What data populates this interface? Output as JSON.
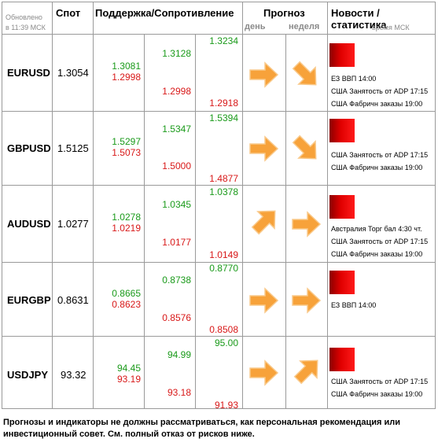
{
  "header": {
    "updated_label": "Обновлено",
    "updated_time": "в 11:39 МСК",
    "spot": "Спот",
    "support_resistance": "Поддержка/Сопротивление",
    "forecast": "Прогноз",
    "day": "день",
    "week": "неделя",
    "news": "Новости / статистика",
    "news_time": "время МСК"
  },
  "rows": [
    {
      "pair": "EURUSD",
      "spot": "1.3054",
      "levels": {
        "s1_res": "1.3081",
        "s1_sup": "1.2998",
        "s2_res": "1.3128",
        "s2_sup": "1.2998",
        "s3_res": "1.3234",
        "s3_sup": "1.2918"
      },
      "forecast_day": "arrow-right-icon",
      "forecast_week": "arrow-down-right-icon",
      "news": [
        "ЕЗ ВВП 14:00",
        "США Занятость от ADP 17:15",
        "США Фабричн заказы 19:00"
      ]
    },
    {
      "pair": "GBPUSD",
      "spot": "1.5125",
      "levels": {
        "s1_res": "1.5297",
        "s1_sup": "1.5073",
        "s2_res": "1.5347",
        "s2_sup": "1.5000",
        "s3_res": "1.5394",
        "s3_sup": "1.4877"
      },
      "forecast_day": "arrow-right-icon",
      "forecast_week": "arrow-down-right-icon",
      "news": [
        "США Занятость от ADP 17:15",
        "США Фабричн заказы 19:00"
      ]
    },
    {
      "pair": "AUDUSD",
      "spot": "1.0277",
      "levels": {
        "s1_res": "1.0278",
        "s1_sup": "1.0219",
        "s2_res": "1.0345",
        "s2_sup": "1.0177",
        "s3_res": "1.0378",
        "s3_sup": "1.0149"
      },
      "forecast_day": "arrow-up-right-icon",
      "forecast_week": "arrow-right-icon",
      "news": [
        "Австралия Торг бал 4:30 чт.",
        "США Занятость от ADP 17:15",
        "США Фабричн заказы 19:00"
      ]
    },
    {
      "pair": "EURGBP",
      "spot": "0.8631",
      "levels": {
        "s1_res": "0.8665",
        "s1_sup": "0.8623",
        "s2_res": "0.8738",
        "s2_sup": "0.8576",
        "s3_res": "0.8770",
        "s3_sup": "0.8508"
      },
      "forecast_day": "arrow-right-icon",
      "forecast_week": "arrow-right-icon",
      "news": [
        "ЕЗ ВВП 14:00"
      ]
    },
    {
      "pair": "USDJPY",
      "spot": "93.32",
      "levels": {
        "s1_res": "94.45",
        "s1_sup": "93.19",
        "s2_res": "94.99",
        "s2_sup": "93.18",
        "s3_res": "95.00",
        "s3_sup": "91.93"
      },
      "forecast_day": "arrow-right-icon",
      "forecast_week": "arrow-up-right-icon",
      "news": [
        "США Занятость от ADP 17:15",
        "США Фабричн заказы 19:00"
      ]
    }
  ],
  "colors": {
    "support_green": "#1a9a1a",
    "resistance_red": "#d81818",
    "arrow_orange": "#f7a23a",
    "news_marker_red": "#e00000"
  },
  "disclaimer": "Прогнозы и индикаторы не должны рассматриваться, как персональная рекомендация или инвестиционный совет. См. полный отказ от рисков ниже."
}
